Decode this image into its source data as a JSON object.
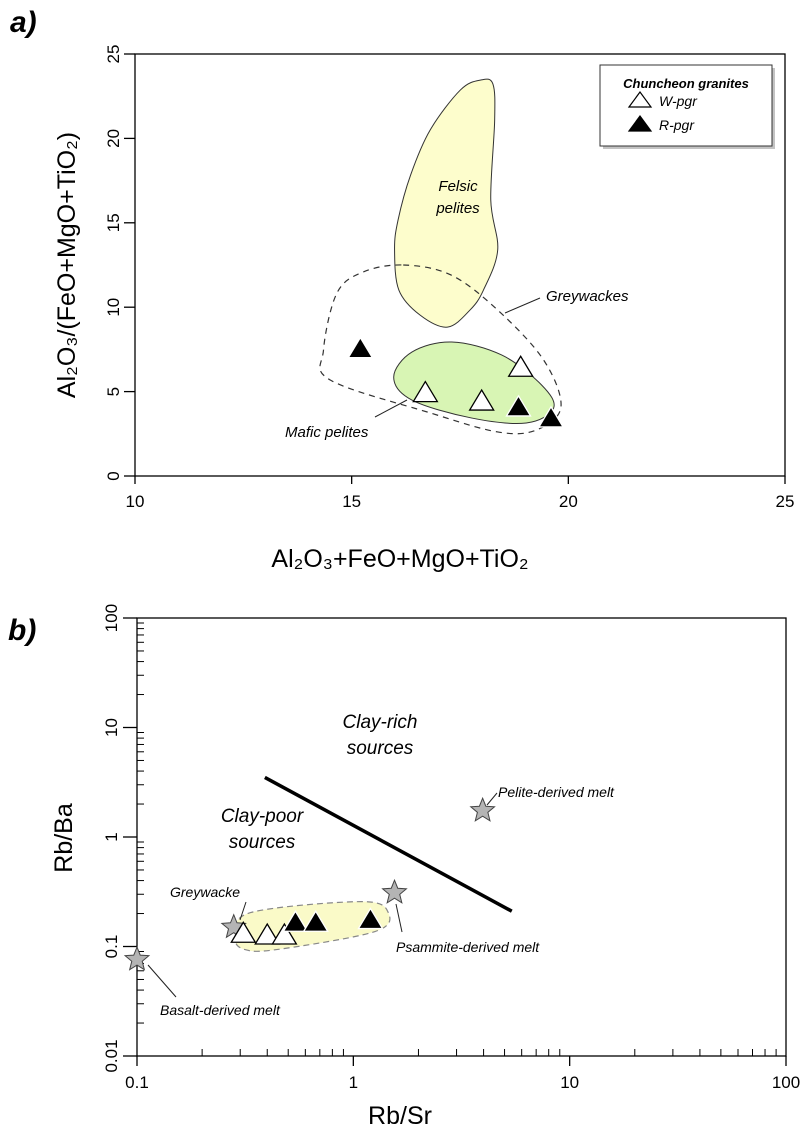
{
  "chart_data": [
    {
      "panel": "a)",
      "type": "scatter",
      "xlabel": "Al₂O₃+FeO+MgO+TiO₂",
      "ylabel": "Al₂O₃/(FeO+MgO+TiO₂)",
      "xscale": "linear",
      "yscale": "linear",
      "xlim": [
        10,
        25
      ],
      "ylim": [
        0,
        25
      ],
      "xticks": [
        10,
        15,
        20,
        25
      ],
      "yticks": [
        0,
        5,
        10,
        15,
        20,
        25
      ],
      "grid": false,
      "legend": {
        "title": "Chuncheon granites",
        "placement": "top-right",
        "entries": [
          {
            "label": "W-pgr",
            "marker": "open-triangle"
          },
          {
            "label": "R-pgr",
            "marker": "filled-triangle"
          }
        ]
      },
      "series": [
        {
          "name": "W-pgr",
          "marker": "open-triangle",
          "points": [
            [
              16.7,
              5.0
            ],
            [
              18.0,
              4.5
            ],
            [
              18.9,
              6.5
            ]
          ]
        },
        {
          "name": "R-pgr",
          "marker": "filled-triangle",
          "points": [
            [
              15.2,
              7.6
            ],
            [
              18.85,
              4.15
            ],
            [
              19.6,
              3.5
            ]
          ]
        }
      ],
      "fields": [
        {
          "label_lines": [
            "Felsic",
            "pelites"
          ],
          "fill": "#fdfdcc",
          "stroke": "#333333",
          "style": "solid",
          "outline": [
            [
              15.99,
              13.39
            ],
            [
              16.09,
              11.01
            ],
            [
              16.58,
              9.53
            ],
            [
              17.21,
              8.82
            ],
            [
              17.73,
              9.83
            ],
            [
              18.04,
              11.01
            ],
            [
              18.37,
              13.39
            ],
            [
              18.21,
              16.35
            ],
            [
              18.3,
              21.09
            ],
            [
              18.26,
              23.22
            ],
            [
              17.98,
              23.46
            ],
            [
              17.51,
              22.87
            ],
            [
              16.81,
              20.49
            ],
            [
              16.36,
              17.83
            ],
            [
              16.07,
              15.16
            ]
          ]
        },
        {
          "label_lines": [
            "Greywackes"
          ],
          "fill": "none",
          "stroke": "#333333",
          "style": "dashed",
          "outline": [
            [
              16.19,
              12.5
            ],
            [
              17.29,
              11.91
            ],
            [
              18.37,
              9.83
            ],
            [
              19.43,
              6.87
            ],
            [
              19.83,
              4.09
            ],
            [
              19.26,
              2.72
            ],
            [
              18.37,
              2.61
            ],
            [
              16.81,
              3.74
            ],
            [
              14.51,
              5.68
            ],
            [
              14.35,
              7.46
            ],
            [
              14.66,
              10.84
            ],
            [
              15.27,
              12.09
            ]
          ]
        },
        {
          "label_lines": [
            "Mafic pelites"
          ],
          "fill": "#d8f5b4",
          "stroke": "#333333",
          "style": "solid",
          "outline": [
            [
              15.97,
              5.86
            ],
            [
              16.39,
              7.34
            ],
            [
              17.31,
              7.94
            ],
            [
              18.46,
              7.17
            ],
            [
              19.38,
              5.4
            ],
            [
              19.66,
              4.02
            ],
            [
              19.03,
              3.14
            ],
            [
              17.76,
              3.44
            ],
            [
              16.39,
              4.5
            ]
          ]
        }
      ]
    },
    {
      "panel": "b)",
      "type": "scatter",
      "xlabel": "Rb/Sr",
      "ylabel": "Rb/Ba",
      "xscale": "log",
      "yscale": "log",
      "xlim": [
        0.1,
        100
      ],
      "ylim": [
        0.01,
        100
      ],
      "xticks": [
        "0.1",
        "1",
        "10",
        "100"
      ],
      "yticks": [
        "0.01",
        "0.1",
        "1",
        "10",
        "100"
      ],
      "grid": false,
      "series": [
        {
          "name": "W-pgr",
          "marker": "open-triangle",
          "points": [
            [
              0.31,
              0.135
            ],
            [
              0.4,
              0.13
            ],
            [
              0.48,
              0.13
            ]
          ]
        },
        {
          "name": "R-pgr",
          "marker": "filled-triangle",
          "points": [
            [
              0.54,
              0.17
            ],
            [
              0.67,
              0.17
            ],
            [
              1.2,
              0.18
            ]
          ]
        }
      ],
      "reference_points": [
        {
          "label": "Greywacke",
          "marker": "gray-star",
          "x": 0.28,
          "y": 0.15
        },
        {
          "label": "Psammite-derived melt",
          "marker": "gray-star",
          "x": 1.55,
          "y": 0.31
        },
        {
          "label": "Pelite-derived melt",
          "marker": "gray-star",
          "x": 3.96,
          "y": 1.74
        },
        {
          "label": "Basalt-derived melt",
          "marker": "gray-star",
          "x": 0.1,
          "y": 0.076
        }
      ],
      "divider_line": [
        [
          0.39,
          3.5
        ],
        [
          5.4,
          0.21
        ]
      ],
      "region_labels": [
        {
          "lines": [
            "Clay-rich",
            "sources"
          ]
        },
        {
          "lines": [
            "Clay-poor",
            "sources"
          ]
        }
      ],
      "fields": [
        {
          "fill": "#fafac8",
          "stroke": "#888888",
          "style": "dashed",
          "outline": [
            [
              0.285,
              0.121
            ],
            [
              0.335,
              0.204
            ],
            [
              1.09,
              0.257
            ],
            [
              1.45,
              0.204
            ],
            [
              1.26,
              0.137
            ],
            [
              0.447,
              0.094
            ],
            [
              0.314,
              0.094
            ]
          ]
        }
      ]
    }
  ]
}
